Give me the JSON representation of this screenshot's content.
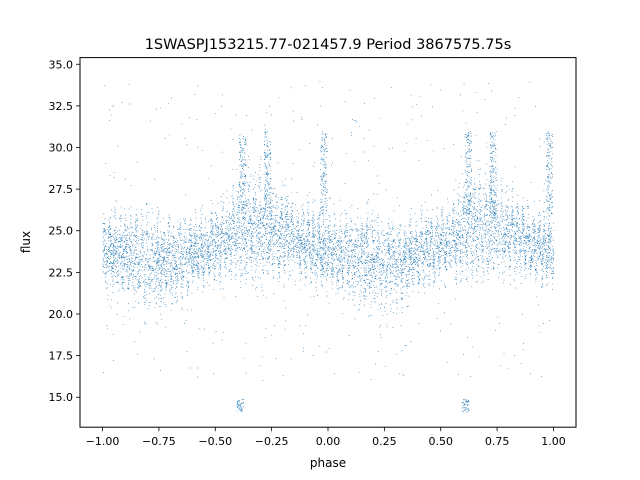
{
  "chart_data": {
    "type": "scatter",
    "title": "1SWASPJ153215.77-021457.9 Period 3867575.75s",
    "xlabel": "phase",
    "ylabel": "flux",
    "xlim": [
      -1.1,
      1.1
    ],
    "ylim": [
      13.2,
      35.4
    ],
    "grid": false,
    "x_ticks": [
      -1.0,
      -0.75,
      -0.5,
      -0.25,
      0.0,
      0.25,
      0.5,
      0.75,
      1.0
    ],
    "x_tick_labels": [
      "−1.00",
      "−0.75",
      "−0.50",
      "−0.25",
      "0.00",
      "0.25",
      "0.50",
      "0.75",
      "1.00"
    ],
    "y_ticks": [
      15.0,
      17.5,
      20.0,
      22.5,
      25.0,
      27.5,
      30.0,
      32.5,
      35.0
    ],
    "y_tick_labels": [
      "15.0",
      "17.5",
      "20.0",
      "22.5",
      "25.0",
      "27.5",
      "30.0",
      "32.5",
      "35.0"
    ],
    "marker_color": "#1f77b4",
    "series": [
      {
        "profile_x": [
          -1.0,
          -0.95,
          -0.9,
          -0.85,
          -0.8,
          -0.75,
          -0.7,
          -0.65,
          -0.6,
          -0.55,
          -0.5,
          -0.45,
          -0.4,
          -0.35,
          -0.3,
          -0.25,
          -0.2,
          -0.15,
          -0.1,
          -0.05,
          0.0,
          0.05,
          0.1,
          0.15,
          0.2,
          0.25,
          0.3,
          0.35,
          0.4,
          0.45,
          0.5,
          0.55,
          0.6,
          0.65,
          0.7,
          0.75,
          0.8,
          0.85,
          0.9,
          0.95,
          1.0
        ],
        "profile_center": [
          23.8,
          23.6,
          23.6,
          23.4,
          23.2,
          23.0,
          23.1,
          23.3,
          23.6,
          23.9,
          24.2,
          24.6,
          24.8,
          25.2,
          25.3,
          25.2,
          25.0,
          24.6,
          24.2,
          23.9,
          23.8,
          23.6,
          23.6,
          23.4,
          23.2,
          23.0,
          23.1,
          23.3,
          23.6,
          23.9,
          24.2,
          24.6,
          24.8,
          25.2,
          25.3,
          25.2,
          25.0,
          24.6,
          24.2,
          23.9,
          23.8
        ],
        "profile_spread": [
          1.6,
          1.8,
          2.0,
          2.2,
          2.4,
          2.3,
          2.0,
          1.8,
          1.6,
          1.6,
          1.6,
          1.8,
          2.2,
          2.6,
          2.6,
          2.4,
          2.1,
          1.8,
          1.6,
          1.6,
          1.6,
          1.8,
          2.0,
          2.2,
          2.4,
          2.3,
          2.0,
          1.8,
          1.6,
          1.6,
          1.6,
          1.8,
          2.2,
          2.6,
          2.6,
          2.4,
          2.1,
          1.8,
          1.6,
          1.6,
          1.6
        ],
        "flare_phases": [
          -0.38,
          -0.27,
          -0.02,
          0.62,
          0.73,
          0.98
        ],
        "flare_level": 30.0,
        "dip_phases": [
          -0.39,
          0.61
        ],
        "dip_level": 14.5
      }
    ]
  }
}
